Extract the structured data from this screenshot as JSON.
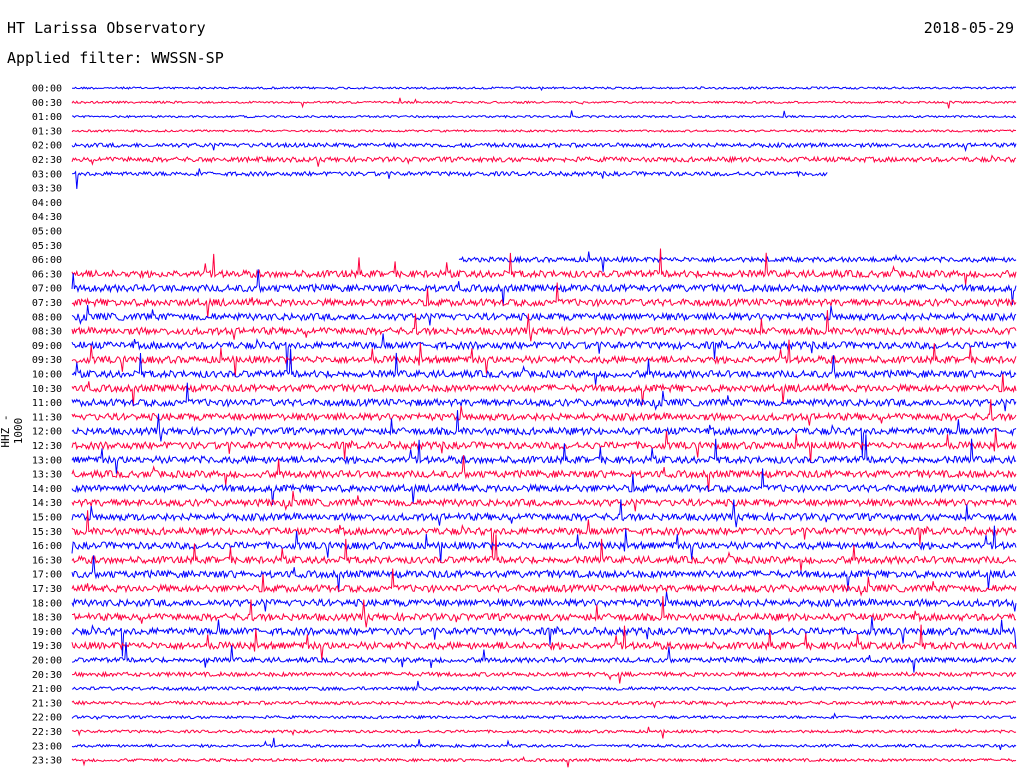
{
  "header": {
    "title": "HT Larissa Observatory",
    "date": "2018-05-29",
    "filter": "Applied filter: WWSSN-SP"
  },
  "chart_data": {
    "type": "line",
    "title": "HT Larissa Observatory",
    "subtitle": "Applied filter: WWSSN-SP",
    "date": "2018-05-29",
    "ylabel": "HHZ - 1000",
    "xlabel": "",
    "colors": [
      "#0000ff",
      "#ff0040"
    ],
    "categories": [
      "00:00",
      "00:30",
      "01:00",
      "01:30",
      "02:00",
      "02:30",
      "03:00",
      "03:30",
      "04:00",
      "04:30",
      "05:00",
      "05:30",
      "06:00",
      "06:30",
      "07:00",
      "07:30",
      "08:00",
      "08:30",
      "09:00",
      "09:30",
      "10:00",
      "10:30",
      "11:00",
      "11:30",
      "12:00",
      "12:30",
      "13:00",
      "13:30",
      "14:00",
      "14:30",
      "15:00",
      "15:30",
      "16:00",
      "16:30",
      "17:00",
      "17:30",
      "18:00",
      "18:30",
      "19:00",
      "19:30",
      "20:00",
      "20:30",
      "21:00",
      "21:30",
      "22:00",
      "22:30",
      "23:00",
      "23:30"
    ],
    "trace_end_fraction": [
      1,
      1,
      1,
      1,
      1,
      1,
      0.8,
      0,
      0,
      0,
      0,
      0,
      1,
      1,
      1,
      1,
      1,
      1,
      1,
      1,
      1,
      1,
      1,
      1,
      1,
      1,
      1,
      1,
      1,
      1,
      1,
      1,
      1,
      1,
      1,
      1,
      1,
      1,
      1,
      1,
      1,
      1,
      1,
      1,
      1,
      1,
      1,
      1
    ],
    "trace_start_fraction": [
      0,
      0,
      0,
      0,
      0,
      0,
      0,
      0,
      0,
      0,
      0,
      0,
      0.41,
      0,
      0,
      0,
      0,
      0,
      0,
      0,
      0,
      0,
      0,
      0,
      0,
      0,
      0,
      0,
      0,
      0,
      0,
      0,
      0,
      0,
      0,
      0,
      0,
      0,
      0,
      0,
      0,
      0,
      0,
      0,
      0,
      0,
      0,
      0
    ],
    "relative_amplitude": [
      0.3,
      0.3,
      0.3,
      0.3,
      0.6,
      0.7,
      0.6,
      0,
      0,
      0,
      0,
      0,
      0.7,
      1,
      1,
      1,
      1,
      1,
      1,
      1,
      1,
      1,
      1,
      1,
      1,
      1,
      1,
      1,
      1,
      1,
      1,
      1,
      1,
      1,
      1,
      1,
      1,
      1,
      1,
      1,
      0.7,
      0.6,
      0.5,
      0.5,
      0.4,
      0.4,
      0.4,
      0.4
    ]
  }
}
